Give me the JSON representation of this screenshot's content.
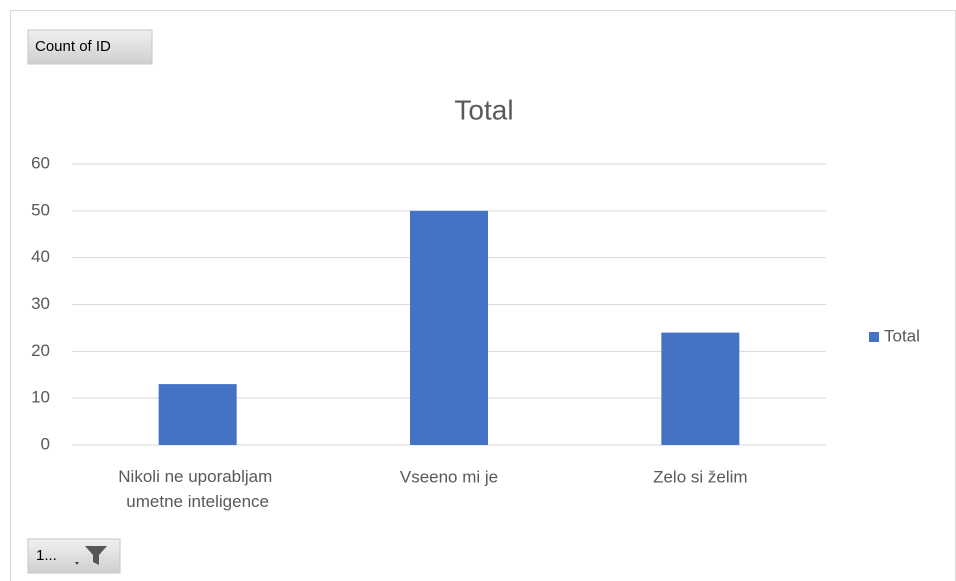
{
  "chart_data": {
    "type": "bar",
    "title": "Total",
    "categories": [
      "Nikoli ne uporabljam umetne inteligence",
      "Vseeno mi je",
      "Zelo si želim"
    ],
    "series": [
      {
        "name": "Total",
        "color": "#4472c4",
        "values": [
          13,
          50,
          24
        ]
      }
    ],
    "ylim": [
      0,
      60
    ],
    "yticks": [
      0,
      10,
      20,
      30,
      40,
      50,
      60
    ],
    "grid": true,
    "legend": "right",
    "value_field_button": "Count of ID",
    "axis_field_button": "1..."
  }
}
